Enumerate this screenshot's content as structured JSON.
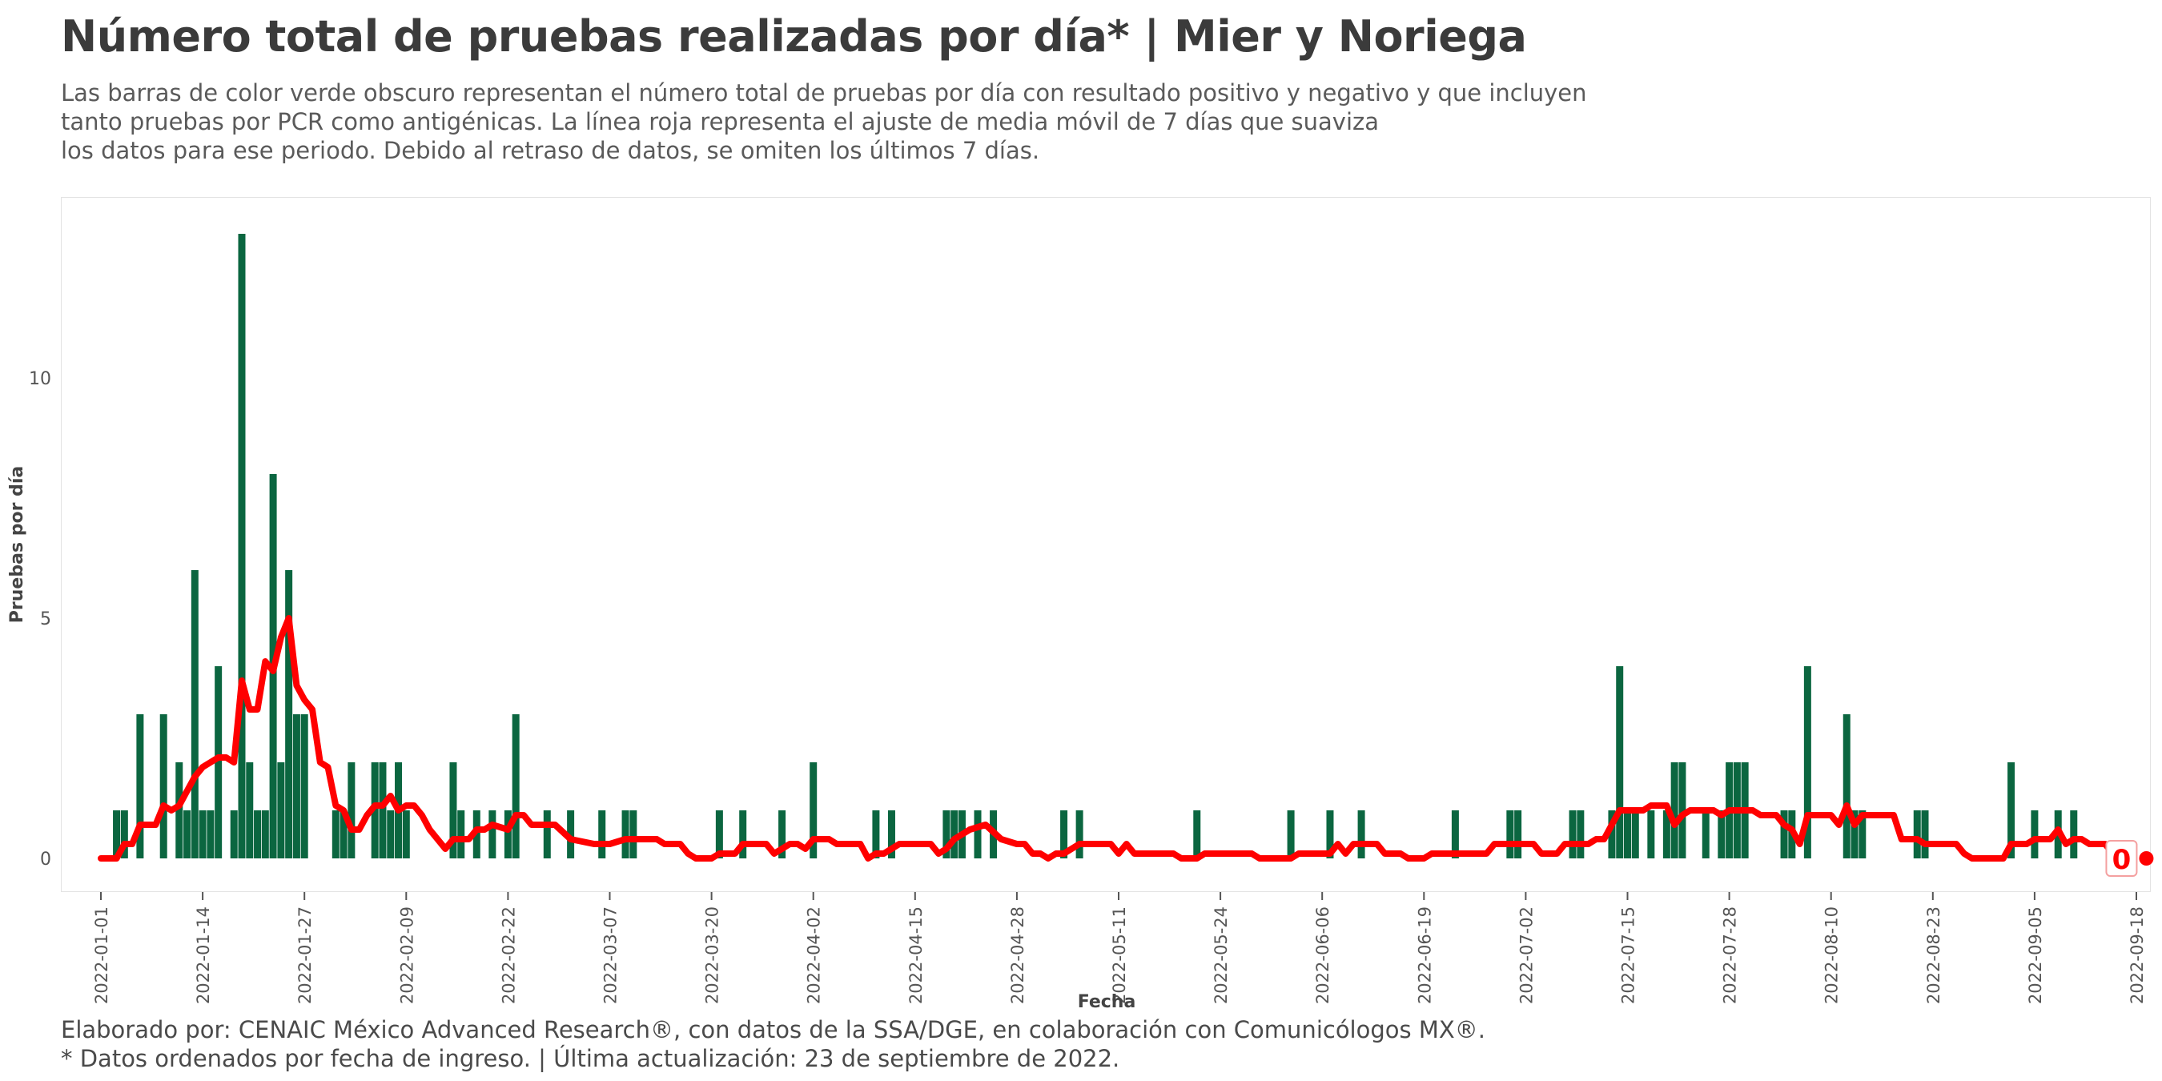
{
  "header": {
    "title": "Número total de pruebas realizadas por día* | Mier y Noriega",
    "subtitle_lines": [
      "Las barras de color verde obscuro representan el número total de pruebas por día con resultado positivo y negativo y que incluyen",
      "tanto pruebas por PCR como antigénicas. La línea roja representa el ajuste de media móvil de 7 días que suaviza",
      "los datos para ese periodo. Debido al retraso de datos, se omiten los últimos 7 días."
    ]
  },
  "footer": {
    "line1": "Elaborado por: CENAIC México Advanced Research®, con datos de la SSA/DGE, en colaboración con Comunicólogos MX®.",
    "line2": "* Datos ordenados por fecha de ingreso. | Última actualización: 23 de septiembre de 2022."
  },
  "colors": {
    "bars": "#0b6640",
    "line": "#ff0000",
    "axis_text": "#555555"
  },
  "chart_data": {
    "type": "bar",
    "xlabel": "Fecha",
    "ylabel": "Pruebas por día",
    "ylim": [
      0,
      13.5
    ],
    "yticks": [
      0,
      5,
      10
    ],
    "xlim": [
      "2022-01-01",
      "2022-09-18"
    ],
    "xticks": [
      "2022-01-01",
      "2022-01-14",
      "2022-01-27",
      "2022-02-09",
      "2022-02-22",
      "2022-03-07",
      "2022-03-20",
      "2022-04-02",
      "2022-04-15",
      "2022-04-28",
      "2022-05-11",
      "2022-05-24",
      "2022-06-06",
      "2022-06-19",
      "2022-07-02",
      "2022-07-15",
      "2022-07-28",
      "2022-08-10",
      "2022-08-23",
      "2022-09-05",
      "2022-09-18"
    ],
    "grid": false,
    "end_label": "0",
    "series": [
      {
        "type": "bar",
        "values": [
          [
            "2022-01-03",
            1
          ],
          [
            "2022-01-04",
            1
          ],
          [
            "2022-01-06",
            3
          ],
          [
            "2022-01-09",
            3
          ],
          [
            "2022-01-11",
            2
          ],
          [
            "2022-01-12",
            1
          ],
          [
            "2022-01-13",
            6
          ],
          [
            "2022-01-14",
            1
          ],
          [
            "2022-01-15",
            1
          ],
          [
            "2022-01-16",
            4
          ],
          [
            "2022-01-18",
            1
          ],
          [
            "2022-01-19",
            13
          ],
          [
            "2022-01-20",
            2
          ],
          [
            "2022-01-21",
            1
          ],
          [
            "2022-01-22",
            1
          ],
          [
            "2022-01-23",
            8
          ],
          [
            "2022-01-24",
            2
          ],
          [
            "2022-01-25",
            6
          ],
          [
            "2022-01-26",
            3
          ],
          [
            "2022-01-27",
            3
          ],
          [
            "2022-01-31",
            1
          ],
          [
            "2022-02-01",
            1
          ],
          [
            "2022-02-02",
            2
          ],
          [
            "2022-02-05",
            2
          ],
          [
            "2022-02-06",
            2
          ],
          [
            "2022-02-07",
            1
          ],
          [
            "2022-02-08",
            2
          ],
          [
            "2022-02-09",
            1
          ],
          [
            "2022-02-15",
            2
          ],
          [
            "2022-02-16",
            1
          ],
          [
            "2022-02-18",
            1
          ],
          [
            "2022-02-20",
            1
          ],
          [
            "2022-02-22",
            1
          ],
          [
            "2022-02-23",
            3
          ],
          [
            "2022-02-27",
            1
          ],
          [
            "2022-03-02",
            1
          ],
          [
            "2022-03-06",
            1
          ],
          [
            "2022-03-09",
            1
          ],
          [
            "2022-03-10",
            1
          ],
          [
            "2022-03-21",
            1
          ],
          [
            "2022-03-24",
            1
          ],
          [
            "2022-03-29",
            1
          ],
          [
            "2022-04-02",
            2
          ],
          [
            "2022-04-10",
            1
          ],
          [
            "2022-04-12",
            1
          ],
          [
            "2022-04-19",
            1
          ],
          [
            "2022-04-20",
            1
          ],
          [
            "2022-04-21",
            1
          ],
          [
            "2022-04-23",
            1
          ],
          [
            "2022-04-25",
            1
          ],
          [
            "2022-05-04",
            1
          ],
          [
            "2022-05-06",
            1
          ],
          [
            "2022-05-21",
            1
          ],
          [
            "2022-06-02",
            1
          ],
          [
            "2022-06-07",
            1
          ],
          [
            "2022-06-11",
            1
          ],
          [
            "2022-06-23",
            1
          ],
          [
            "2022-06-30",
            1
          ],
          [
            "2022-07-01",
            1
          ],
          [
            "2022-07-08",
            1
          ],
          [
            "2022-07-09",
            1
          ],
          [
            "2022-07-13",
            1
          ],
          [
            "2022-07-14",
            4
          ],
          [
            "2022-07-15",
            1
          ],
          [
            "2022-07-16",
            1
          ],
          [
            "2022-07-18",
            1
          ],
          [
            "2022-07-20",
            1
          ],
          [
            "2022-07-21",
            2
          ],
          [
            "2022-07-22",
            2
          ],
          [
            "2022-07-25",
            1
          ],
          [
            "2022-07-27",
            1
          ],
          [
            "2022-07-28",
            2
          ],
          [
            "2022-07-29",
            2
          ],
          [
            "2022-07-30",
            2
          ],
          [
            "2022-08-04",
            1
          ],
          [
            "2022-08-05",
            1
          ],
          [
            "2022-08-07",
            4
          ],
          [
            "2022-08-12",
            3
          ],
          [
            "2022-08-13",
            1
          ],
          [
            "2022-08-14",
            1
          ],
          [
            "2022-08-21",
            1
          ],
          [
            "2022-08-22",
            1
          ],
          [
            "2022-09-02",
            2
          ],
          [
            "2022-09-05",
            1
          ],
          [
            "2022-09-08",
            1
          ],
          [
            "2022-09-10",
            1
          ]
        ]
      },
      {
        "type": "line",
        "values": [
          [
            "2022-01-01",
            0
          ],
          [
            "2022-01-03",
            0
          ],
          [
            "2022-01-04",
            0.3
          ],
          [
            "2022-01-05",
            0.3
          ],
          [
            "2022-01-06",
            0.7
          ],
          [
            "2022-01-08",
            0.7
          ],
          [
            "2022-01-09",
            1.1
          ],
          [
            "2022-01-10",
            1.0
          ],
          [
            "2022-01-11",
            1.1
          ],
          [
            "2022-01-12",
            1.4
          ],
          [
            "2022-01-13",
            1.7
          ],
          [
            "2022-01-14",
            1.9
          ],
          [
            "2022-01-15",
            2.0
          ],
          [
            "2022-01-16",
            2.1
          ],
          [
            "2022-01-17",
            2.1
          ],
          [
            "2022-01-18",
            2.0
          ],
          [
            "2022-01-19",
            3.7
          ],
          [
            "2022-01-20",
            3.1
          ],
          [
            "2022-01-21",
            3.1
          ],
          [
            "2022-01-22",
            4.1
          ],
          [
            "2022-01-23",
            3.9
          ],
          [
            "2022-01-24",
            4.6
          ],
          [
            "2022-01-25",
            5.0
          ],
          [
            "2022-01-26",
            3.6
          ],
          [
            "2022-01-27",
            3.3
          ],
          [
            "2022-01-28",
            3.1
          ],
          [
            "2022-01-29",
            2.0
          ],
          [
            "2022-01-30",
            1.9
          ],
          [
            "2022-01-31",
            1.1
          ],
          [
            "2022-02-01",
            1.0
          ],
          [
            "2022-02-02",
            0.6
          ],
          [
            "2022-02-03",
            0.6
          ],
          [
            "2022-02-04",
            0.9
          ],
          [
            "2022-02-05",
            1.1
          ],
          [
            "2022-02-06",
            1.1
          ],
          [
            "2022-02-07",
            1.3
          ],
          [
            "2022-02-08",
            1.0
          ],
          [
            "2022-02-09",
            1.1
          ],
          [
            "2022-02-10",
            1.1
          ],
          [
            "2022-02-11",
            0.9
          ],
          [
            "2022-02-12",
            0.6
          ],
          [
            "2022-02-13",
            0.4
          ],
          [
            "2022-02-14",
            0.2
          ],
          [
            "2022-02-15",
            0.4
          ],
          [
            "2022-02-17",
            0.4
          ],
          [
            "2022-02-18",
            0.6
          ],
          [
            "2022-02-19",
            0.6
          ],
          [
            "2022-02-20",
            0.7
          ],
          [
            "2022-02-22",
            0.6
          ],
          [
            "2022-02-23",
            0.9
          ],
          [
            "2022-02-24",
            0.9
          ],
          [
            "2022-02-25",
            0.7
          ],
          [
            "2022-02-28",
            0.7
          ],
          [
            "2022-03-02",
            0.4
          ],
          [
            "2022-03-05",
            0.3
          ],
          [
            "2022-03-07",
            0.3
          ],
          [
            "2022-03-09",
            0.4
          ],
          [
            "2022-03-13",
            0.4
          ],
          [
            "2022-03-14",
            0.3
          ],
          [
            "2022-03-16",
            0.3
          ],
          [
            "2022-03-17",
            0.1
          ],
          [
            "2022-03-18",
            0
          ],
          [
            "2022-03-20",
            0
          ],
          [
            "2022-03-21",
            0.1
          ],
          [
            "2022-03-23",
            0.1
          ],
          [
            "2022-03-24",
            0.3
          ],
          [
            "2022-03-27",
            0.3
          ],
          [
            "2022-03-28",
            0.1
          ],
          [
            "2022-03-30",
            0.3
          ],
          [
            "2022-03-31",
            0.3
          ],
          [
            "2022-04-01",
            0.2
          ],
          [
            "2022-04-02",
            0.4
          ],
          [
            "2022-04-04",
            0.4
          ],
          [
            "2022-04-05",
            0.3
          ],
          [
            "2022-04-08",
            0.3
          ],
          [
            "2022-04-09",
            0
          ],
          [
            "2022-04-10",
            0.1
          ],
          [
            "2022-04-11",
            0.1
          ],
          [
            "2022-04-13",
            0.3
          ],
          [
            "2022-04-17",
            0.3
          ],
          [
            "2022-04-18",
            0.1
          ],
          [
            "2022-04-19",
            0.2
          ],
          [
            "2022-04-20",
            0.4
          ],
          [
            "2022-04-22",
            0.6
          ],
          [
            "2022-04-24",
            0.7
          ],
          [
            "2022-04-26",
            0.4
          ],
          [
            "2022-04-28",
            0.3
          ],
          [
            "2022-04-29",
            0.3
          ],
          [
            "2022-04-30",
            0.1
          ],
          [
            "2022-05-01",
            0.1
          ],
          [
            "2022-05-02",
            0
          ],
          [
            "2022-05-03",
            0.1
          ],
          [
            "2022-05-04",
            0.1
          ],
          [
            "2022-05-06",
            0.3
          ],
          [
            "2022-05-10",
            0.3
          ],
          [
            "2022-05-11",
            0.1
          ],
          [
            "2022-05-12",
            0.3
          ],
          [
            "2022-05-13",
            0.1
          ],
          [
            "2022-05-18",
            0.1
          ],
          [
            "2022-05-19",
            0
          ],
          [
            "2022-05-21",
            0
          ],
          [
            "2022-05-22",
            0.1
          ],
          [
            "2022-05-28",
            0.1
          ],
          [
            "2022-05-29",
            0
          ],
          [
            "2022-06-02",
            0
          ],
          [
            "2022-06-03",
            0.1
          ],
          [
            "2022-06-07",
            0.1
          ],
          [
            "2022-06-08",
            0.3
          ],
          [
            "2022-06-09",
            0.1
          ],
          [
            "2022-06-10",
            0.3
          ],
          [
            "2022-06-13",
            0.3
          ],
          [
            "2022-06-14",
            0.1
          ],
          [
            "2022-06-16",
            0.1
          ],
          [
            "2022-06-17",
            0
          ],
          [
            "2022-06-19",
            0
          ],
          [
            "2022-06-20",
            0.1
          ],
          [
            "2022-06-27",
            0.1
          ],
          [
            "2022-06-28",
            0.3
          ],
          [
            "2022-07-03",
            0.3
          ],
          [
            "2022-07-04",
            0.1
          ],
          [
            "2022-07-06",
            0.1
          ],
          [
            "2022-07-07",
            0.3
          ],
          [
            "2022-07-10",
            0.3
          ],
          [
            "2022-07-11",
            0.4
          ],
          [
            "2022-07-12",
            0.4
          ],
          [
            "2022-07-13",
            0.7
          ],
          [
            "2022-07-14",
            1.0
          ],
          [
            "2022-07-17",
            1.0
          ],
          [
            "2022-07-18",
            1.1
          ],
          [
            "2022-07-20",
            1.1
          ],
          [
            "2022-07-21",
            0.7
          ],
          [
            "2022-07-22",
            0.9
          ],
          [
            "2022-07-23",
            1.0
          ],
          [
            "2022-07-26",
            1.0
          ],
          [
            "2022-07-27",
            0.9
          ],
          [
            "2022-07-28",
            1.0
          ],
          [
            "2022-07-31",
            1.0
          ],
          [
            "2022-08-01",
            0.9
          ],
          [
            "2022-08-03",
            0.9
          ],
          [
            "2022-08-04",
            0.7
          ],
          [
            "2022-08-05",
            0.6
          ],
          [
            "2022-08-06",
            0.3
          ],
          [
            "2022-08-07",
            0.9
          ],
          [
            "2022-08-10",
            0.9
          ],
          [
            "2022-08-11",
            0.7
          ],
          [
            "2022-08-12",
            1.1
          ],
          [
            "2022-08-13",
            0.7
          ],
          [
            "2022-08-14",
            0.9
          ],
          [
            "2022-08-18",
            0.9
          ],
          [
            "2022-08-19",
            0.4
          ],
          [
            "2022-08-21",
            0.4
          ],
          [
            "2022-08-22",
            0.3
          ],
          [
            "2022-08-26",
            0.3
          ],
          [
            "2022-08-27",
            0.1
          ],
          [
            "2022-08-28",
            0
          ],
          [
            "2022-09-01",
            0
          ],
          [
            "2022-09-02",
            0.3
          ],
          [
            "2022-09-04",
            0.3
          ],
          [
            "2022-09-05",
            0.4
          ],
          [
            "2022-09-07",
            0.4
          ],
          [
            "2022-09-08",
            0.6
          ],
          [
            "2022-09-09",
            0.3
          ],
          [
            "2022-09-10",
            0.4
          ],
          [
            "2022-09-11",
            0.4
          ],
          [
            "2022-09-12",
            0.3
          ],
          [
            "2022-09-14",
            0.3
          ],
          [
            "2022-09-15",
            0.1
          ],
          [
            "2022-09-16",
            0
          ]
        ]
      }
    ]
  }
}
